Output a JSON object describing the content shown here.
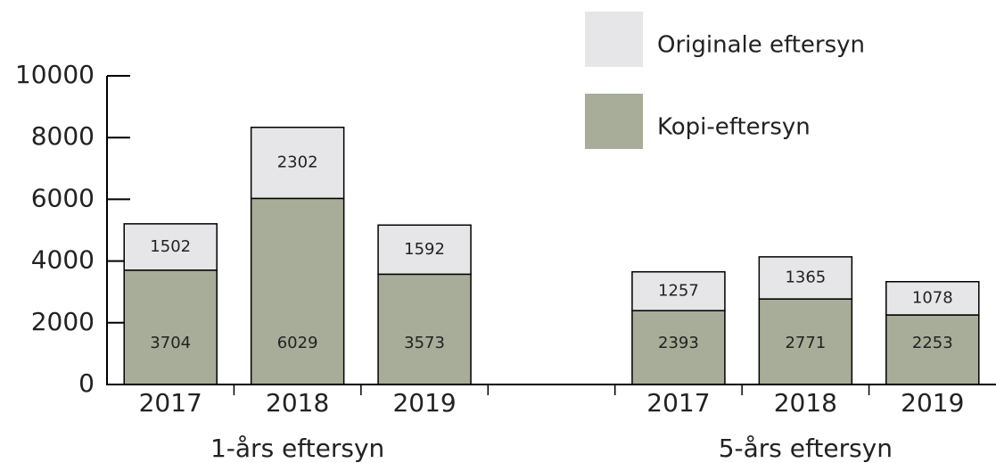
{
  "chart_data": {
    "type": "stacked_bar",
    "categories": [
      "2017",
      "2018",
      "2019",
      null,
      "2017",
      "2018",
      "2019"
    ],
    "group_labels": [
      "1-års eftersyn",
      "5-års eftersyn"
    ],
    "series": [
      {
        "name": "Kopi-eftersyn",
        "color": "#a7ad98",
        "values": [
          3704,
          6029,
          3573,
          null,
          2393,
          2771,
          2253
        ]
      },
      {
        "name": "Originale eftersyn",
        "color": "#e6e6e9",
        "values": [
          1502,
          2302,
          1592,
          null,
          1257,
          1365,
          1078
        ]
      }
    ],
    "ylim": [
      0,
      10000
    ],
    "yticks": [
      0,
      2000,
      4000,
      6000,
      8000,
      10000
    ],
    "legend": "top-right"
  }
}
